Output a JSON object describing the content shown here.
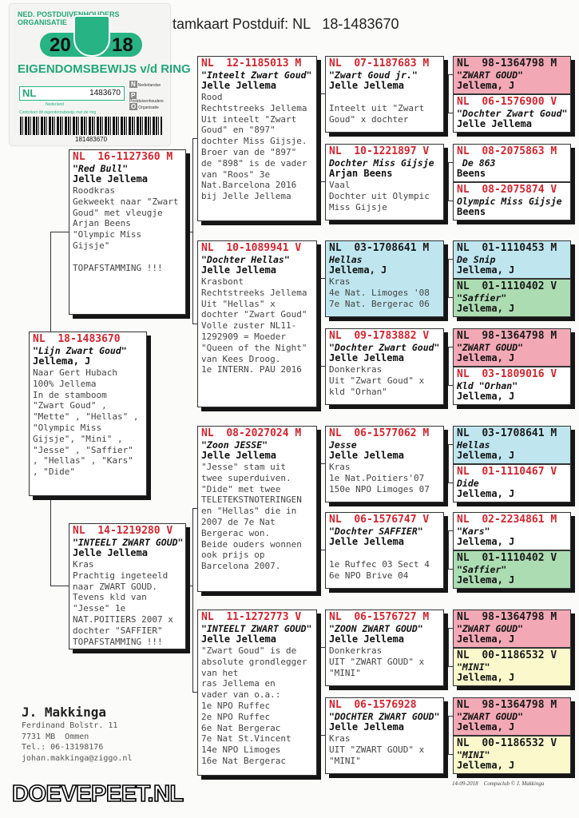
{
  "title": "tamkaart Postduif: NL   18-1483670",
  "colors": {
    "red_header": "#d7232d",
    "pink": "#f2a9b5",
    "blue": "#bfe6ef",
    "green": "#acdcb2",
    "yellow": "#fbf9cc"
  },
  "ring_card": {
    "org": "NED. POSTDUIVENHOUDERS ORGANISATIE",
    "year_left": "20",
    "year_right": "18",
    "heading": "EIGENDOMSBEWIJS v/d RING",
    "country": "NL",
    "ring_number": "1483670",
    "npo_1": "Nederlandse",
    "npo_2": "Postduivenhouders",
    "npo_3": "Organisatie",
    "country_label": "Nederland",
    "check_text": "Controleer dit eigendomsbewijs met de ring",
    "barcode": "181483670"
  },
  "pedigree": {
    "subject": {
      "country": "NL",
      "ring": "18-1483670",
      "sex": "",
      "name": "\"Lijn Zwart Goud\"",
      "breeder": "Jellema, J",
      "notes": [
        "Naar Gert Hubach",
        "100% Jellema",
        "In de stamboom",
        "\"Zwart Goud\" ,",
        "\"Mette\" , \"Hellas\" ,",
        "\"Olympic Miss",
        "Gijsje\", \"Mini\" ,",
        "\"Jesse\" , \"Saffier\"",
        ", \"Hellas\" , \"Kars\"",
        ", \"Dide\""
      ],
      "color": "white"
    },
    "gen2": [
      {
        "country": "NL",
        "ring": "16-1127360",
        "sex": "M",
        "name": "\"Red Bull\"",
        "breeder": "Jelle Jellema",
        "notes": [
          "Roodkras",
          "Gekweekt naar \"Zwart",
          "Goud\" met vleugje",
          "Arjan Beens",
          "\"Olympic Miss",
          "Gijsje\"",
          "",
          "TOPAFSTAMMING !!!"
        ],
        "color": "white"
      },
      {
        "country": "NL",
        "ring": "14-1219280",
        "sex": "V",
        "name": "\"INTEELT ZWART GOUD\"",
        "breeder": "Jelle Jellema",
        "notes": [
          "Kras",
          "Prachtig ingeteeld",
          "naar ZWART GOUD.",
          "Tevens kld van",
          "\"Jesse\" 1e",
          "NAT.POITIERS 2007 x",
          "dochter \"SAFFIER\"",
          "TOPAFSTAMMING !!!"
        ],
        "color": "white"
      }
    ],
    "gen3": [
      {
        "country": "NL",
        "ring": "12-1185013",
        "sex": "M",
        "name": "\"Inteelt Zwart Goud\"",
        "breeder": "Jelle Jellema",
        "notes": [
          "Rood",
          "Rechtstreeks Jellema",
          "Uit inteelt \"Zwart",
          "Goud\" en \"897\"",
          "dochter Miss Gijsje.",
          "Broer van de \"897\"",
          "de \"898\" is de vader",
          "van \"Roos\" 3e",
          "Nat.Barcelona 2016",
          "bij Jelle Jellema"
        ],
        "color": "white"
      },
      {
        "country": "NL",
        "ring": "10-1089941",
        "sex": "V",
        "name": "\"Dochter Hellas\"",
        "breeder": "Jelle Jellema",
        "notes": [
          "Krasbont",
          "Rechtstreeks Jellema",
          "Uit \"Hellas\" x",
          "dochter \"Zwart Goud\"",
          "Volle zuster NL11-",
          "1292909 = Moeder",
          "\"Queen of the Night\"",
          "van Kees Droog.",
          "1e INTERN. PAU 2016"
        ],
        "color": "white"
      },
      {
        "country": "NL",
        "ring": "08-2027024",
        "sex": "M",
        "name": "\"Zoon JESSE\"",
        "breeder": "Jelle Jellema",
        "notes": [
          "\"Jesse\" stam uit",
          "twee superduiven.",
          "\"Dide\" met twee",
          "TELETEKSTNOTERINGEN",
          "en \"Hellas\" die in",
          "2007 de 7e Nat",
          "Bergerac won.",
          "Beide ouders wonnen",
          "ook prijs op",
          "Barcelona 2007."
        ],
        "color": "white"
      },
      {
        "country": "NL",
        "ring": "11-1272773",
        "sex": "V",
        "name": "\"INTEELT ZWART GOUD\"",
        "breeder": "Jelle Jellema",
        "notes": [
          "\"Zwart Goud\" is de",
          "absolute grondlegger",
          "van het",
          "ras Jellema en",
          "vader van o.a.:",
          "1e NPO Ruffec",
          "2e NPO Ruffec",
          "6e Nat Bergerac",
          "7e Nat St.Vincent",
          "14e NPO Limoges",
          "16e Nat Bergerac"
        ],
        "color": "white"
      }
    ],
    "gen4": [
      {
        "country": "NL",
        "ring": "07-1187683",
        "sex": "M",
        "name": "\"Zwart Goud jr.\"",
        "breeder": "Jelle Jellema",
        "notes": [
          "",
          "Inteelt uit \"Zwart",
          "Goud\" x dochter"
        ],
        "color": "white"
      },
      {
        "country": "NL",
        "ring": "10-1221897",
        "sex": "V",
        "name": "Dochter Miss Gijsje",
        "breeder": "Arjan Beens",
        "notes": [
          "Vaal",
          "Dochter uit Olympic",
          "Miss Gijsje"
        ],
        "color": "white"
      },
      {
        "country": "NL",
        "ring": "03-1708641",
        "sex": "M",
        "name": "Hellas",
        "breeder": "Jellema, J",
        "notes": [
          "Kras",
          "4e Nat. Limoges '08",
          "7e Nat. Bergerac 06"
        ],
        "color": "blue"
      },
      {
        "country": "NL",
        "ring": "09-1783882",
        "sex": "V",
        "name": "\"Dochter Zwart Goud\"",
        "breeder": "Jelle Jellema",
        "notes": [
          "Donkerkras",
          "Uit \"Zwart Goud\" x",
          "kld \"Orhan\""
        ],
        "color": "white"
      },
      {
        "country": "NL",
        "ring": "06-1577062",
        "sex": "M",
        "name": "Jesse",
        "breeder": "Jelle Jellema",
        "notes": [
          "Kras",
          "1e Nat.Poitiers'07",
          "150e NPO Limoges 07"
        ],
        "color": "white"
      },
      {
        "country": "NL",
        "ring": "06-1576747",
        "sex": "V",
        "name": "\"Dochter SAFFIER\"",
        "breeder": "Jelle Jellema",
        "notes": [
          "",
          "1e Ruffec 03 Sect 4",
          "6e NPO Brive 04"
        ],
        "color": "white"
      },
      {
        "country": "NL",
        "ring": "06-1576727",
        "sex": "M",
        "name": "\"ZOON ZWART GOUD\"",
        "breeder": "Jelle Jellema",
        "notes": [
          "Donkerkras",
          "UIT \"ZWART GOUD\" x",
          "\"MINI\""
        ],
        "color": "white"
      },
      {
        "country": "NL",
        "ring": "06-1576928",
        "sex": "",
        "name": "\"DOCHTER ZWART GOUD\"",
        "breeder": "Jelle Jellema",
        "notes": [
          "Kras",
          "UIT \"ZWART GOUD\" x",
          "\"MINI\""
        ],
        "color": "white"
      }
    ],
    "gen5": [
      {
        "country": "NL",
        "ring": "98-1364798",
        "sex": "M",
        "name": "\"ZWART GOUD\"",
        "breeder": "Jellema, J",
        "color": "pink"
      },
      {
        "country": "NL",
        "ring": "06-1576900",
        "sex": "V",
        "name": "\"Dochter Zwart Goud\"",
        "breeder": "Jelle Jellema",
        "color": "white"
      },
      {
        "country": "NL",
        "ring": "08-2075863",
        "sex": "M",
        "name": " De 863",
        "breeder": "Beens",
        "color": "white"
      },
      {
        "country": "NL",
        "ring": "08-2075874",
        "sex": "V",
        "name": "Olympic Miss Gijsje",
        "breeder": "Beens",
        "color": "white"
      },
      {
        "country": "NL",
        "ring": "01-1110453",
        "sex": "M",
        "name": "De Snip",
        "breeder": "Jellema, J",
        "color": "blue"
      },
      {
        "country": "NL",
        "ring": "01-1110402",
        "sex": "V",
        "name": "\"Saffier\"",
        "breeder": "Jellema, J",
        "color": "green"
      },
      {
        "country": "NL",
        "ring": "98-1364798",
        "sex": "M",
        "name": "\"ZWART GOUD\"",
        "breeder": "Jellema, J",
        "color": "pink"
      },
      {
        "country": "NL",
        "ring": "03-1809016",
        "sex": "V",
        "name": "Kld \"Orhan\"",
        "breeder": "Jellema, J",
        "color": "white"
      },
      {
        "country": "NL",
        "ring": "03-1708641",
        "sex": "M",
        "name": "Hellas",
        "breeder": "Jellema, J",
        "color": "blue"
      },
      {
        "country": "NL",
        "ring": "01-1110467",
        "sex": "V",
        "name": "Dide",
        "breeder": "Jellema, J",
        "color": "white"
      },
      {
        "country": "NL",
        "ring": "02-2234861",
        "sex": "M",
        "name": "\"Kars\"",
        "breeder": "Jellema, J",
        "color": "white"
      },
      {
        "country": "NL",
        "ring": "01-1110402",
        "sex": "V",
        "name": "\"Saffier\"",
        "breeder": "Jellema, J",
        "color": "green"
      },
      {
        "country": "NL",
        "ring": "98-1364798",
        "sex": "M",
        "name": "\"ZWART GOUD\"",
        "breeder": "Jellema, J",
        "color": "pink"
      },
      {
        "country": "NL",
        "ring": "00-1186532",
        "sex": "V",
        "name": "\"MINI\"",
        "breeder": "Jellema, J",
        "color": "yellow"
      },
      {
        "country": "NL",
        "ring": "98-1364798",
        "sex": "M",
        "name": "\"ZWART GOUD\"",
        "breeder": "Jellema, J",
        "color": "pink"
      },
      {
        "country": "NL",
        "ring": "00-1186532",
        "sex": "V",
        "name": "\"MINI\"",
        "breeder": "Jellema, J",
        "color": "yellow"
      }
    ]
  },
  "owner": {
    "name": "J. Makkinga",
    "street": "Ferdinand Bolstr. 11",
    "city": "7731 MB  Ommen",
    "phone": "Tel.: 06-13198176",
    "email": "johan.makkinga@ziggo.nl"
  },
  "footer": {
    "date": "14-09-2018",
    "credit": "Compuclub © J. Makkinga"
  },
  "watermark": "DOEVEPEET.NL"
}
